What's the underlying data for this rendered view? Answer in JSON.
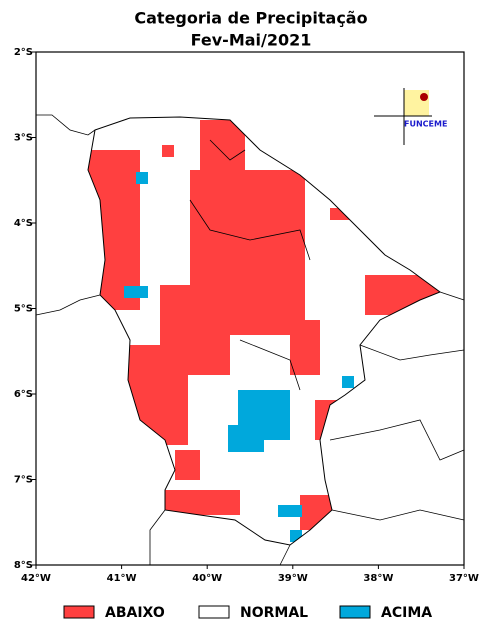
{
  "title": [
    "Categoria de Precipitação",
    "Fev-Mai/2021"
  ],
  "lat_ticks": [
    {
      "value": -2,
      "label": "2°S"
    },
    {
      "value": -3,
      "label": "3°S"
    },
    {
      "value": -4,
      "label": "4°S"
    },
    {
      "value": -5,
      "label": "5°S"
    },
    {
      "value": -6,
      "label": "6°S"
    },
    {
      "value": -7,
      "label": "7°S"
    },
    {
      "value": -8,
      "label": "8°S"
    }
  ],
  "lon_ticks": [
    {
      "value": -42,
      "label": "42°W"
    },
    {
      "value": -41,
      "label": "41°W"
    },
    {
      "value": -40,
      "label": "40°W"
    },
    {
      "value": -39,
      "label": "39°W"
    },
    {
      "value": -38,
      "label": "38°W"
    },
    {
      "value": -37,
      "label": "37°W"
    }
  ],
  "lat_range": [
    -2,
    -8
  ],
  "lon_range": [
    -42,
    -37
  ],
  "legend": [
    {
      "label": "ABAIXO",
      "color": "#ff4040"
    },
    {
      "label": "NORMAL",
      "color": "#ffffff"
    },
    {
      "label": "ACIMA",
      "color": "#00a8dc"
    }
  ],
  "logo": "FUNCEME"
}
